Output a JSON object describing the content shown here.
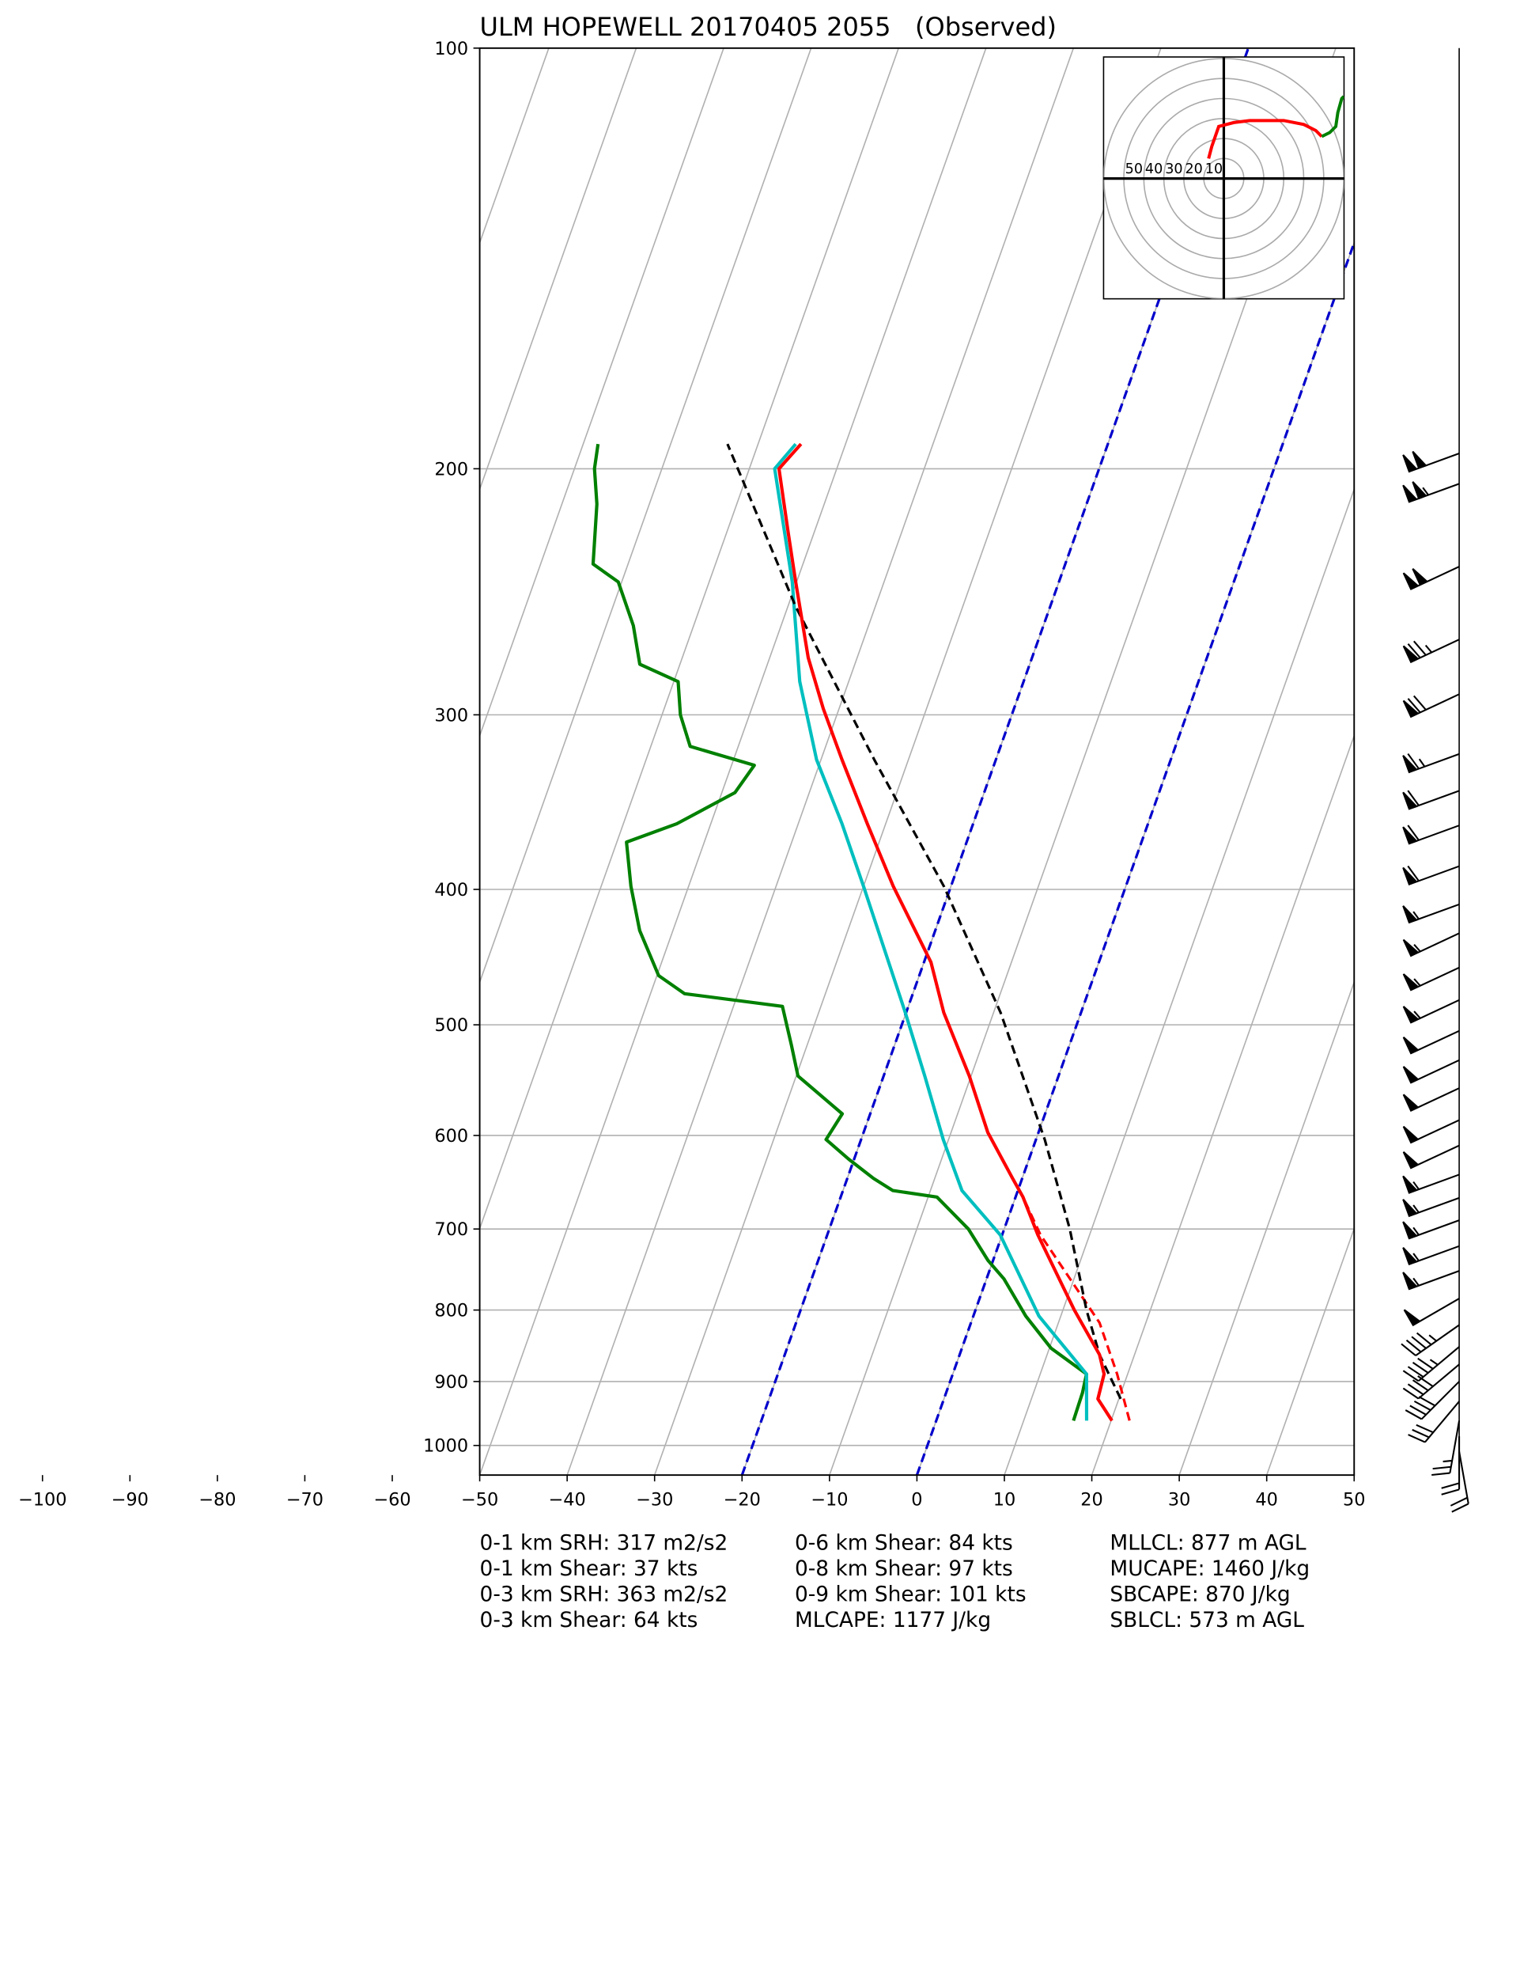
{
  "chart_data": {
    "type": "skewt",
    "title": "ULM HOPEWELL 20170405 2055   (Observed)",
    "xlim": [
      -50,
      50
    ],
    "ylim": [
      1050,
      100
    ],
    "log_y": true,
    "grid": true,
    "xticks": [
      {
        "value": -100,
        "label": "−100"
      },
      {
        "value": -90,
        "label": "−90"
      },
      {
        "value": -80,
        "label": "−80"
      },
      {
        "value": -70,
        "label": "−70"
      },
      {
        "value": -60,
        "label": "−60"
      },
      {
        "value": -50,
        "label": "−50"
      },
      {
        "value": -40,
        "label": "−40"
      },
      {
        "value": -30,
        "label": "−30"
      },
      {
        "value": -20,
        "label": "−20"
      },
      {
        "value": -10,
        "label": "−10"
      },
      0,
      10,
      20,
      30,
      40,
      50
    ],
    "yticks": [
      100,
      200,
      300,
      400,
      500,
      600,
      700,
      800,
      900,
      1000
    ],
    "highlight_isotherms": {
      "values": [
        -20,
        0
      ],
      "color": "#0000cc"
    },
    "series": [
      {
        "color": "#008000",
        "style": "solid",
        "pressure": [
          960,
          917,
          889,
          852,
          808,
          760,
          737,
          700,
          664,
          657,
          644,
          624,
          604,
          579,
          544,
          517,
          485,
          475,
          461,
          428,
          398,
          370,
          359,
          341,
          326,
          316,
          300,
          284,
          276,
          259,
          241,
          234,
          212,
          200,
          192
        ],
        "values": [
          15.7,
          15.6,
          15.3,
          10.2,
          6.0,
          2.0,
          -0.6,
          -4.1,
          -9.0,
          -14.3,
          -17.0,
          -20.6,
          -24.0,
          -23.2,
          -29.8,
          -31.8,
          -34.4,
          -46.1,
          -49.8,
          -53.8,
          -56.6,
          -58.9,
          -53.9,
          -48.5,
          -47.4,
          -55.5,
          -57.9,
          -59.5,
          -64.6,
          -66.9,
          -70.4,
          -74.0,
          -76.0,
          -77.7,
          -78.3
        ]
      },
      {
        "color": "#00bfbf",
        "style": "solid",
        "pressure": [
          960,
          889,
          808,
          707,
          657,
          604,
          544,
          490,
          398,
          359,
          323,
          284,
          241,
          200,
          192
        ],
        "values": [
          17.2,
          15.3,
          7.5,
          -0.2,
          -6.4,
          -10.6,
          -15.3,
          -20.1,
          -30.0,
          -35.0,
          -40.5,
          -45.6,
          -50.5,
          -57.1,
          -55.7
        ]
      },
      {
        "color": "#ff0000",
        "style": "dashed",
        "pressure": [
          960,
          889,
          817,
          707,
          664
        ],
        "values": [
          22.1,
          18.8,
          14.7,
          4.4,
          0.85
        ]
      },
      {
        "color": "#000000",
        "style": "dashed",
        "pressure": [
          926,
          861,
          800,
          700,
          604,
          490,
          398,
          323,
          251,
          192
        ],
        "values": [
          20.2,
          16.0,
          12.7,
          7.5,
          1.0,
          -9.2,
          -20.8,
          -33.9,
          -49.1,
          -63.5
        ]
      },
      {
        "color": "#ff0000",
        "style": "solid",
        "pressure": [
          960,
          926,
          889,
          861,
          800,
          707,
          664,
          644,
          597,
          544,
          490,
          451,
          398,
          359,
          323,
          297,
          273,
          241,
          222,
          200,
          192
        ],
        "values": [
          20.1,
          17.6,
          17.3,
          16.0,
          11.3,
          4.1,
          0.85,
          -1.1,
          -5.8,
          -10.2,
          -15.7,
          -19.2,
          -26.6,
          -32.1,
          -37.6,
          -41.8,
          -45.6,
          -50.1,
          -53.0,
          -56.6,
          -55.1
        ]
      }
    ],
    "hodograph": {
      "rings": [
        50,
        40,
        30,
        20,
        10
      ],
      "series": [
        {
          "color": "#ff0000",
          "u": [
            -7.6,
            -6,
            -2.5,
            5,
            13,
            21,
            30,
            40,
            46,
            49
          ],
          "v": [
            10,
            16,
            26,
            28,
            29,
            29,
            29,
            27,
            24,
            21
          ]
        },
        {
          "color": "#008000",
          "u": [
            49,
            53,
            56,
            57,
            59,
            60
          ],
          "v": [
            21,
            23,
            26,
            33,
            40,
            41
          ]
        }
      ]
    },
    "barbs": {
      "pressure": [
        195,
        205,
        235,
        265,
        290,
        320,
        340,
        360,
        385,
        410,
        430,
        455,
        480,
        505,
        530,
        555,
        585,
        610,
        640,
        665,
        690,
        720,
        750,
        785,
        820,
        850,
        875,
        900,
        930,
        960,
        985,
        1010
      ],
      "speed": [
        100,
        105,
        100,
        75,
        70,
        65,
        60,
        60,
        60,
        55,
        55,
        55,
        55,
        50,
        50,
        50,
        50,
        50,
        55,
        55,
        55,
        55,
        55,
        50,
        45,
        45,
        40,
        40,
        30,
        25,
        20,
        20
      ],
      "direction": [
        250,
        250,
        245,
        245,
        245,
        250,
        250,
        250,
        250,
        250,
        245,
        245,
        245,
        245,
        245,
        245,
        245,
        245,
        250,
        250,
        250,
        250,
        250,
        240,
        235,
        230,
        230,
        225,
        220,
        190,
        180,
        170
      ]
    },
    "stats": [
      [
        "0-1 km SRH: 317 m2/s2",
        "0-1 km Shear: 37 kts",
        "0-3 km SRH: 363 m2/s2",
        "0-3 km Shear: 64 kts"
      ],
      [
        "0-6 km Shear: 84 kts",
        "0-8 km Shear: 97 kts",
        "0-9 km Shear: 101 kts",
        "MLCAPE: 1177 J/kg"
      ],
      [
        "MLLCL: 877 m AGL",
        "MUCAPE: 1460 J/kg",
        "SBCAPE: 870 J/kg",
        "SBLCL: 573 m AGL"
      ]
    ]
  }
}
